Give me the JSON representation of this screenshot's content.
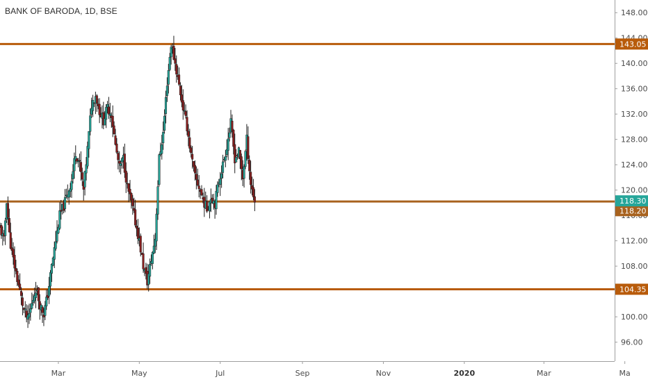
{
  "chart_title": "BANK OF BARODA, 1D, BSE",
  "chart_data": {
    "type": "candlestick",
    "title": "BANK OF BARODA, 1D, BSE",
    "ylim": [
      93,
      150
    ],
    "y_ticks": [
      "96.00",
      "100.00",
      "104.00",
      "108.00",
      "112.00",
      "116.00",
      "120.00",
      "124.00",
      "128.00",
      "132.00",
      "136.00",
      "140.00",
      "144.00",
      "148.00"
    ],
    "x_ticks": [
      {
        "label": "Mar",
        "day": 44,
        "year_marker": false
      },
      {
        "label": "May",
        "day": 105,
        "year_marker": false
      },
      {
        "label": "Jul",
        "day": 166,
        "year_marker": false
      },
      {
        "label": "Sep",
        "day": 228,
        "year_marker": false
      },
      {
        "label": "Nov",
        "day": 289,
        "year_marker": false
      },
      {
        "label": "2020",
        "day": 350,
        "year_marker": true
      },
      {
        "label": "Mar",
        "day": 410,
        "year_marker": false
      },
      {
        "label": "Ma",
        "day": 471,
        "year_marker": false
      }
    ],
    "series_path": [
      [
        0,
        114
      ],
      [
        3,
        112
      ],
      [
        5,
        118.5
      ],
      [
        7,
        113
      ],
      [
        9,
        110
      ],
      [
        12,
        107
      ],
      [
        15,
        104
      ],
      [
        18,
        101
      ],
      [
        21,
        99.5
      ],
      [
        24,
        102
      ],
      [
        27,
        104.5
      ],
      [
        30,
        102
      ],
      [
        33,
        100.5
      ],
      [
        36,
        103.5
      ],
      [
        39,
        108
      ],
      [
        42,
        112
      ],
      [
        45,
        116
      ],
      [
        48,
        117.5
      ],
      [
        51,
        119.5
      ],
      [
        54,
        121.5
      ],
      [
        57,
        126
      ],
      [
        60,
        124
      ],
      [
        63,
        120
      ],
      [
        66,
        126.5
      ],
      [
        69,
        133.5
      ],
      [
        72,
        135
      ],
      [
        75,
        132.5
      ],
      [
        78,
        131
      ],
      [
        81,
        133
      ],
      [
        84,
        132
      ],
      [
        87,
        127
      ],
      [
        90,
        123.5
      ],
      [
        93,
        125
      ],
      [
        96,
        120.5
      ],
      [
        99,
        118
      ],
      [
        102,
        115
      ],
      [
        105,
        112
      ],
      [
        108,
        108
      ],
      [
        111,
        105.5
      ],
      [
        114,
        109
      ],
      [
        117,
        112.5
      ],
      [
        120,
        125
      ],
      [
        123,
        129
      ],
      [
        126,
        137
      ],
      [
        129,
        143
      ],
      [
        132,
        140
      ],
      [
        135,
        136.5
      ],
      [
        138,
        133
      ],
      [
        141,
        130
      ],
      [
        144,
        125.5
      ],
      [
        147,
        122
      ],
      [
        150,
        120.5
      ],
      [
        153,
        118.5
      ],
      [
        156,
        117
      ],
      [
        159,
        119
      ],
      [
        162,
        118
      ],
      [
        165,
        121.5
      ],
      [
        168,
        124
      ],
      [
        171,
        127
      ],
      [
        174,
        130.5
      ],
      [
        177,
        125
      ],
      [
        180,
        126
      ],
      [
        183,
        122
      ],
      [
        186,
        128
      ],
      [
        189,
        121
      ],
      [
        192,
        118.3
      ]
    ],
    "horizontal_lines": [
      {
        "label": "143.05",
        "value": 143.05,
        "color": "#b85b0a"
      },
      {
        "label": "118.20",
        "value": 118.2,
        "color": "#a8621e"
      },
      {
        "label": "104.35",
        "value": 104.35,
        "color": "#b85b0a"
      }
    ],
    "last_price": {
      "label": "118.30",
      "value": 118.3,
      "color": "#26a69a"
    },
    "up_color": "#26a69a",
    "down_color": "#8b1e1e",
    "wick_color": "#1f1f1f"
  }
}
